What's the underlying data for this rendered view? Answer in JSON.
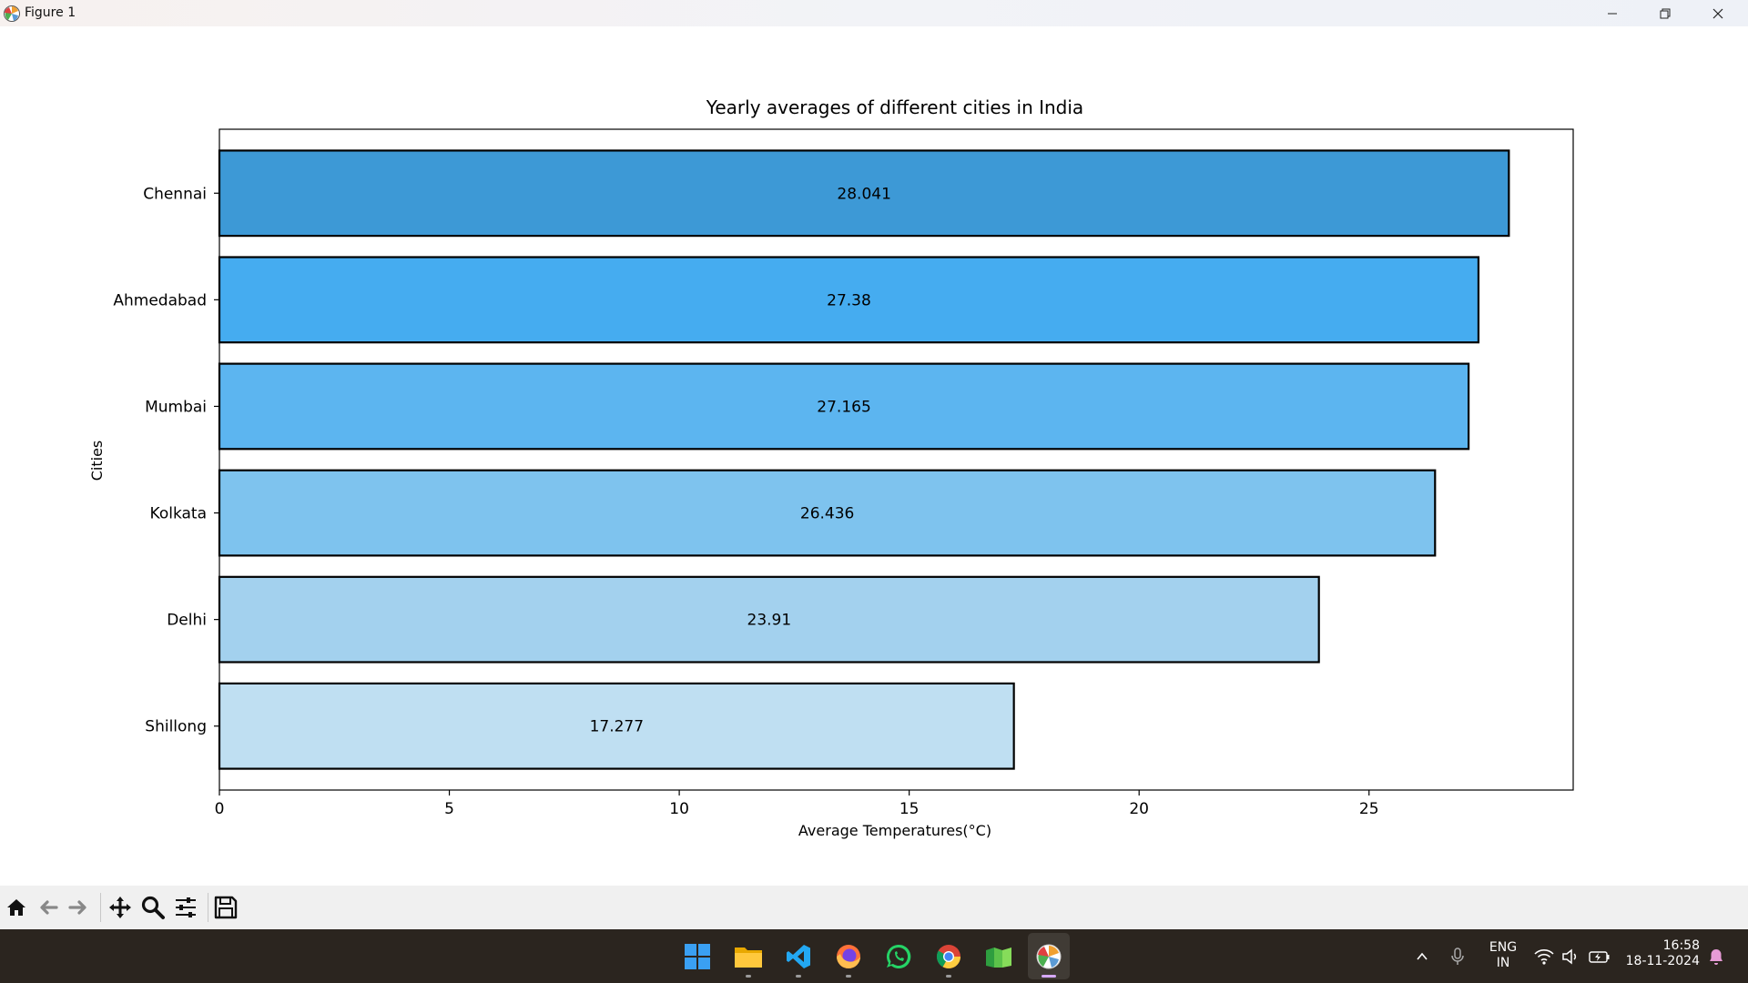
{
  "window": {
    "title": "Figure 1"
  },
  "chart_data": {
    "type": "bar",
    "orientation": "horizontal",
    "title": "Yearly averages of different cities in India",
    "xlabel": "Average Temperatures(°C)",
    "ylabel": "Cities",
    "categories": [
      "Shillong",
      "Delhi",
      "Kolkata",
      "Mumbai",
      "Ahmedabad",
      "Chennai"
    ],
    "values": [
      17.277,
      23.91,
      26.436,
      27.165,
      27.38,
      28.041
    ],
    "value_labels": [
      "17.277",
      "23.91",
      "26.436",
      "27.165",
      "27.38",
      "28.041"
    ],
    "bar_colors": [
      "#bfdff2",
      "#a3d1ee",
      "#7ec3ee",
      "#5cb5f0",
      "#45acf0",
      "#3d99d6"
    ],
    "xlim": [
      0,
      29.44
    ],
    "xticks": [
      0,
      5,
      10,
      15,
      20,
      25
    ],
    "grid": false,
    "legend": false
  },
  "toolbar": {
    "icons": [
      "home-icon",
      "back-arrow-icon",
      "forward-arrow-icon",
      "pan-icon",
      "zoom-icon",
      "configure-subplots-icon",
      "save-icon"
    ]
  },
  "taskbar": {
    "apps": [
      "windows-start",
      "file-explorer",
      "vs-code",
      "firefox",
      "whatsapp",
      "chrome",
      "spreadsheet-app",
      "matplotlib-figure"
    ],
    "language_line1": "ENG",
    "language_line2": "IN",
    "time": "16:58",
    "date": "18-11-2024"
  }
}
